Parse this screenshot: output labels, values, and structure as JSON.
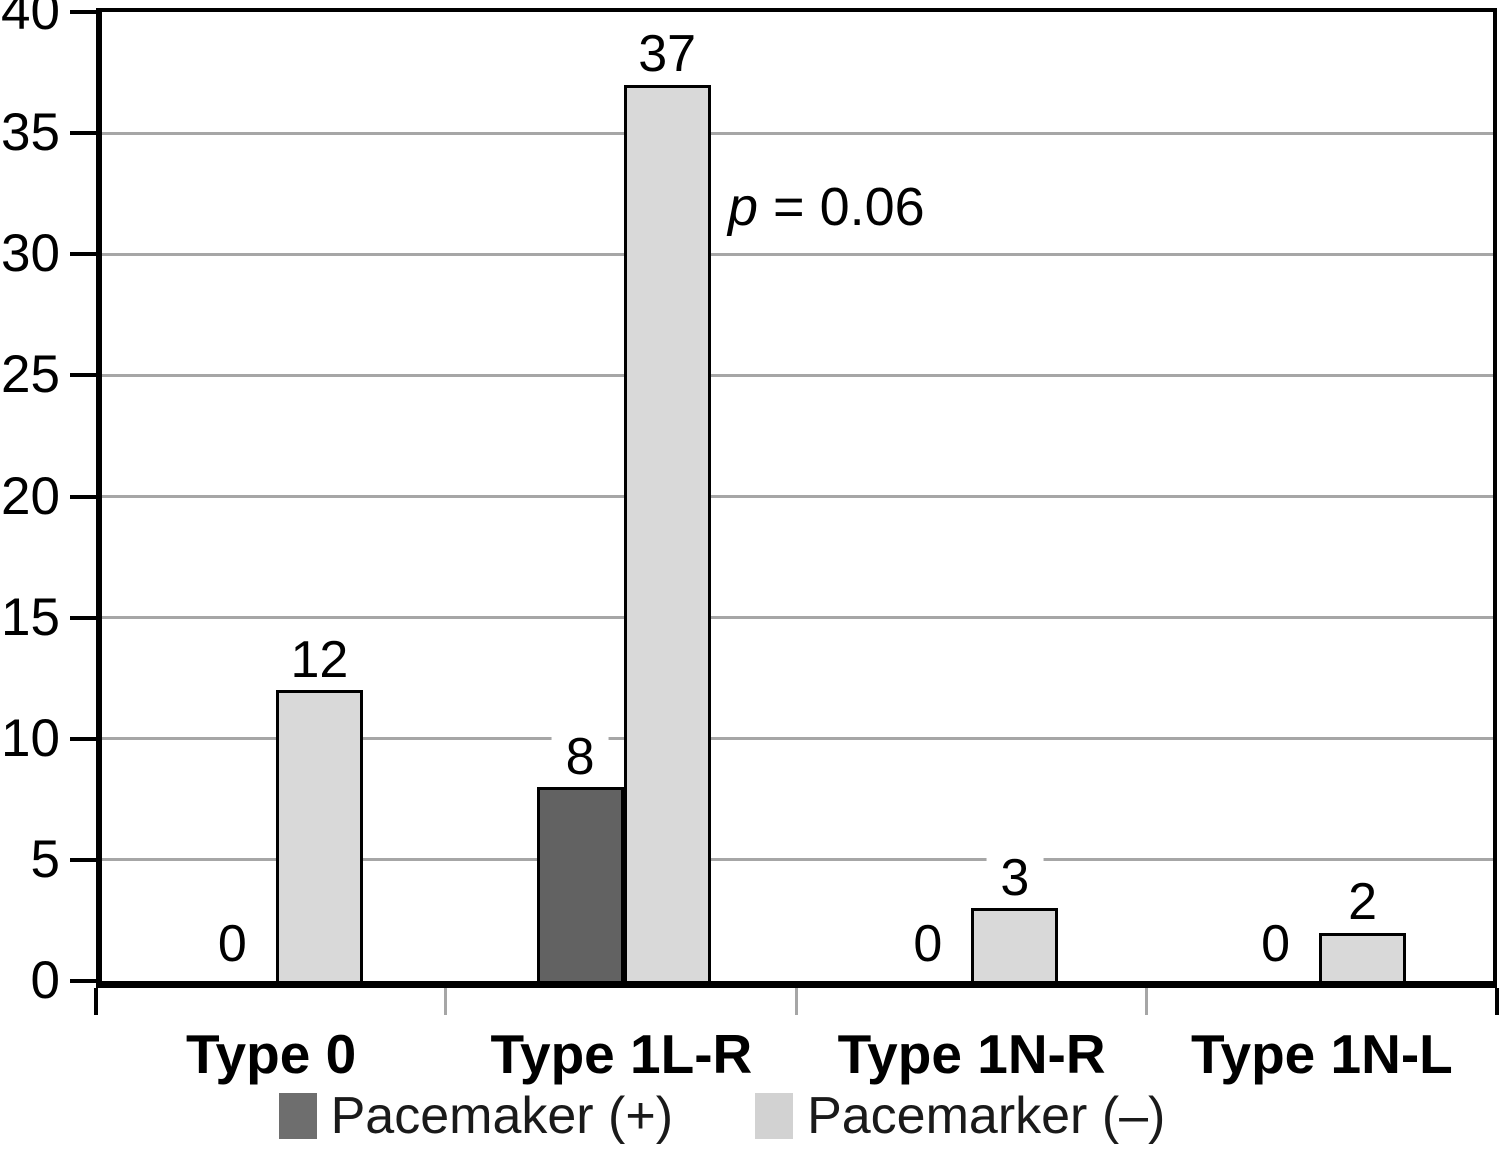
{
  "chart_data": {
    "type": "bar",
    "title": "",
    "xlabel": "",
    "ylabel": "",
    "categories": [
      "Type 0",
      "Type 1L-R",
      "Type 1N-R",
      "Type 1N-L"
    ],
    "series": [
      {
        "name": "Pacemaker (+)",
        "values": [
          0,
          8,
          0,
          0
        ],
        "bar_color": "#626262",
        "legend_color": "#6e6e6e"
      },
      {
        "name": "Pacemarker (–)",
        "values": [
          12,
          37,
          3,
          2
        ],
        "bar_color": "#d9d9d9",
        "legend_color": "#d2d2d2"
      }
    ],
    "ylim": [
      0,
      40
    ],
    "yticks": [
      0,
      5,
      10,
      15,
      20,
      25,
      30,
      35,
      40
    ],
    "grid": true,
    "gridline_color": "#a6a6a6",
    "axis_color": "#000000",
    "bar_outline_color": "#000000",
    "value_labels_shown": true,
    "legend_position": "bottom",
    "annotation": {
      "italic_part": "p",
      "normal_part": " = 0.06"
    }
  }
}
